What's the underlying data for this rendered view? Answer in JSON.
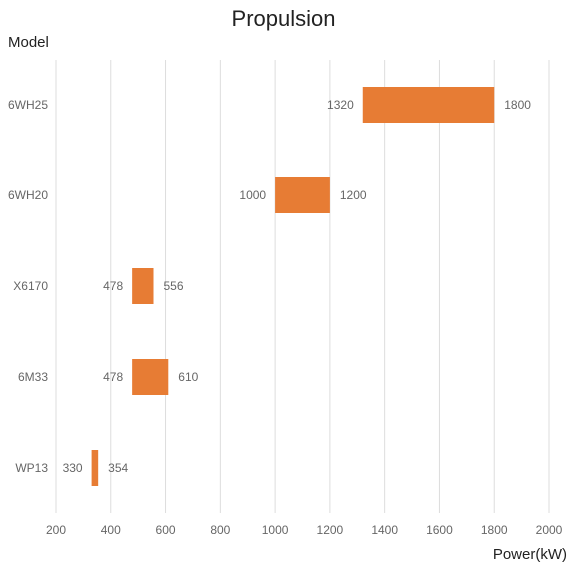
{
  "chart_data": {
    "type": "bar",
    "orientation": "horizontal-range",
    "title": "Propulsion",
    "ylabel": "Model",
    "xlabel": "Power(kW)",
    "xlim": [
      200,
      2000
    ],
    "xticks": [
      200,
      400,
      600,
      800,
      1000,
      1200,
      1400,
      1600,
      1800,
      2000
    ],
    "grid": true,
    "categories": [
      "6WH25",
      "6WH20",
      "X6170",
      "6M33",
      "WP13"
    ],
    "ranges": [
      {
        "model": "6WH25",
        "low": 1320,
        "high": 1800
      },
      {
        "model": "6WH20",
        "low": 1000,
        "high": 1200
      },
      {
        "model": "X6170",
        "low": 478,
        "high": 556
      },
      {
        "model": "6M33",
        "low": 478,
        "high": 610
      },
      {
        "model": "WP13",
        "low": 330,
        "high": 354
      }
    ],
    "bar_color": "#E77C34"
  }
}
